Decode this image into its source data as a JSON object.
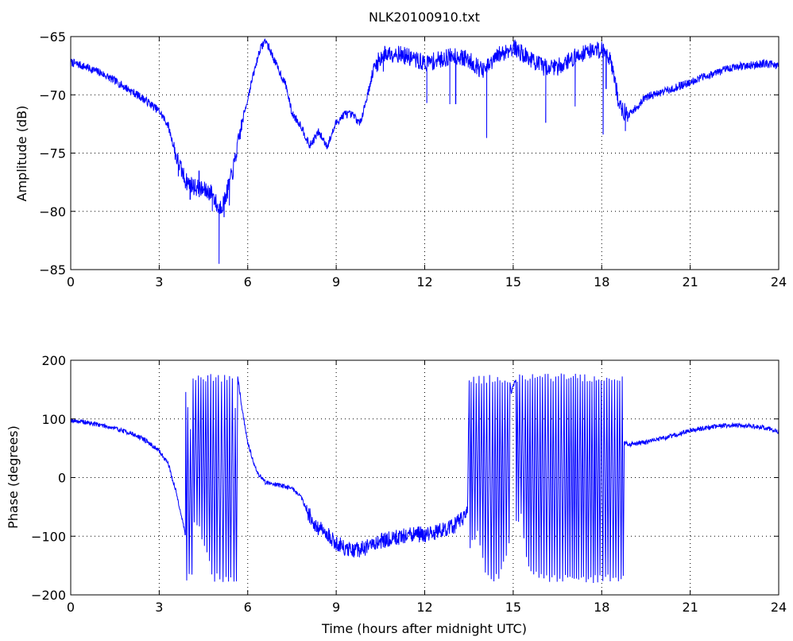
{
  "figure": {
    "title": "NLK20100910.txt",
    "colors": {
      "line": "#0000ff",
      "axes": "#000000",
      "grid": "#000000",
      "background": "#ffffff"
    }
  },
  "chart_data": [
    {
      "type": "line",
      "title": "NLK20100910.txt",
      "xlabel": "",
      "ylabel": "Amplitude (dB)",
      "xlim": [
        0,
        24
      ],
      "ylim": [
        -85,
        -65
      ],
      "xticks": [
        0,
        3,
        6,
        9,
        12,
        15,
        18,
        21,
        24
      ],
      "yticks": [
        -85,
        -80,
        -75,
        -70,
        -65
      ],
      "xtick_labels": [
        "0",
        "3",
        "6",
        "9",
        "12",
        "15",
        "18",
        "21",
        "24"
      ],
      "ytick_labels": [
        "-85",
        "-80",
        "-75",
        "-70",
        "-65"
      ],
      "grid": true,
      "series": [
        {
          "x": [
            0,
            0.5,
            1,
            1.5,
            2,
            2.5,
            3,
            3.3,
            3.6,
            3.9,
            4.2,
            4.5,
            4.8,
            5.0,
            5.2,
            5.5,
            5.8,
            6.1,
            6.4,
            6.6,
            6.8,
            7.0,
            7.3,
            7.5,
            7.8,
            8.1,
            8.4,
            8.7,
            9.0,
            9.3,
            9.6,
            9.8,
            10.0,
            10.3,
            10.6,
            11.0,
            11.5,
            12.0,
            12.5,
            13.0,
            13.5,
            14.0,
            14.5,
            15.0,
            15.5,
            16.0,
            16.5,
            17.0,
            17.5,
            18.0,
            18.3,
            18.6,
            18.9,
            19.2,
            19.5,
            20.0,
            20.5,
            21.0,
            21.5,
            22.0,
            22.5,
            23.0,
            23.5,
            24.0
          ],
          "y": [
            -67.2,
            -67.6,
            -68.1,
            -68.8,
            -69.6,
            -70.4,
            -71.4,
            -72.6,
            -75.5,
            -77.4,
            -77.9,
            -78.2,
            -78.4,
            -79.8,
            -79.2,
            -76.5,
            -72.5,
            -69.2,
            -66.2,
            -65.3,
            -66.4,
            -67.6,
            -69.2,
            -71.6,
            -72.6,
            -74.4,
            -73.2,
            -74.4,
            -72.4,
            -71.6,
            -71.8,
            -72.5,
            -70.6,
            -67.6,
            -66.5,
            -66.4,
            -66.8,
            -67.3,
            -67.0,
            -66.6,
            -67.0,
            -68.0,
            -66.6,
            -65.9,
            -66.8,
            -67.6,
            -67.6,
            -66.9,
            -66.2,
            -66.1,
            -66.8,
            -71.0,
            -71.8,
            -71.0,
            -70.2,
            -69.8,
            -69.4,
            -68.9,
            -68.4,
            -68.0,
            -67.6,
            -67.5,
            -67.3,
            -67.5
          ],
          "spikes": [
            {
              "x": 3.65,
              "to": -77.0
            },
            {
              "x": 4.05,
              "to": -79.0
            },
            {
              "x": 4.35,
              "to": -76.5
            },
            {
              "x": 4.8,
              "to": -80.0
            },
            {
              "x": 5.03,
              "to": -84.5
            },
            {
              "x": 5.2,
              "to": -80.5
            },
            {
              "x": 5.38,
              "to": -79.5
            },
            {
              "x": 10.6,
              "to": -68.0
            },
            {
              "x": 12.07,
              "to": -70.7
            },
            {
              "x": 12.85,
              "to": -70.8
            },
            {
              "x": 13.05,
              "to": -70.8
            },
            {
              "x": 14.1,
              "to": -73.7
            },
            {
              "x": 16.1,
              "to": -72.4
            },
            {
              "x": 17.1,
              "to": -71.0
            },
            {
              "x": 18.05,
              "to": -73.4
            },
            {
              "x": 18.15,
              "to": -69.5
            },
            {
              "x": 18.8,
              "to": -73.1
            }
          ]
        }
      ]
    },
    {
      "type": "line",
      "title": "",
      "xlabel": "Time (hours after midnight UTC)",
      "ylabel": "Phase (degrees)",
      "xlim": [
        0,
        24
      ],
      "ylim": [
        -200,
        200
      ],
      "xticks": [
        0,
        3,
        6,
        9,
        12,
        15,
        18,
        21,
        24
      ],
      "yticks": [
        -200,
        -100,
        0,
        100,
        200
      ],
      "xtick_labels": [
        "0",
        "3",
        "6",
        "9",
        "12",
        "15",
        "18",
        "21",
        "24"
      ],
      "ytick_labels": [
        "-200",
        "-100",
        "0",
        "100",
        "200"
      ],
      "grid": true,
      "series": [
        {
          "x": [
            0,
            0.5,
            1,
            1.5,
            2,
            2.5,
            3,
            3.3,
            3.6,
            3.9,
            4.1,
            4.12,
            4.3,
            4.5,
            4.7,
            4.9,
            5.1,
            5.3,
            5.5,
            5.62,
            5.65,
            5.8,
            6.0,
            6.3,
            6.6,
            7.0,
            7.5,
            7.8,
            8.0,
            8.3,
            8.6,
            9.0,
            9.5,
            10.0,
            10.5,
            11.0,
            11.5,
            12.0,
            12.5,
            13.0,
            13.45,
            13.5,
            13.8,
            14.0,
            14.3,
            14.6,
            14.9,
            15.1,
            15.3,
            15.4,
            15.5,
            16.0,
            16.5,
            17.0,
            17.5,
            18.0,
            18.5,
            18.75,
            19.0,
            19.5,
            20.0,
            20.5,
            21.0,
            21.5,
            22.0,
            22.5,
            23.0,
            23.5,
            24.0
          ],
          "y": [
            98,
            94,
            90,
            84,
            76,
            65,
            45,
            25,
            -30,
            -100,
            -170,
            178,
            165,
            130,
            100,
            60,
            30,
            0,
            -40,
            -170,
            178,
            120,
            60,
            10,
            -8,
            -12,
            -18,
            -32,
            -55,
            -85,
            -92,
            -112,
            -126,
            -120,
            -108,
            -102,
            -98,
            -97,
            -92,
            -82,
            -62,
            120,
            150,
            95,
            10,
            80,
            140,
            170,
            178,
            120,
            90,
            70,
            60,
            58,
            57,
            56,
            55,
            58,
            57,
            60,
            66,
            72,
            80,
            85,
            88,
            90,
            88,
            86,
            78
          ],
          "oscillation_bands": [
            {
              "x_start": 3.9,
              "x_end": 5.65,
              "low": -178,
              "high": 178
            },
            {
              "x_start": 13.5,
              "x_end": 14.9,
              "low": -178,
              "high": 175
            },
            {
              "x_start": 15.1,
              "x_end": 18.75,
              "low": -180,
              "high": 178
            }
          ]
        }
      ]
    }
  ]
}
